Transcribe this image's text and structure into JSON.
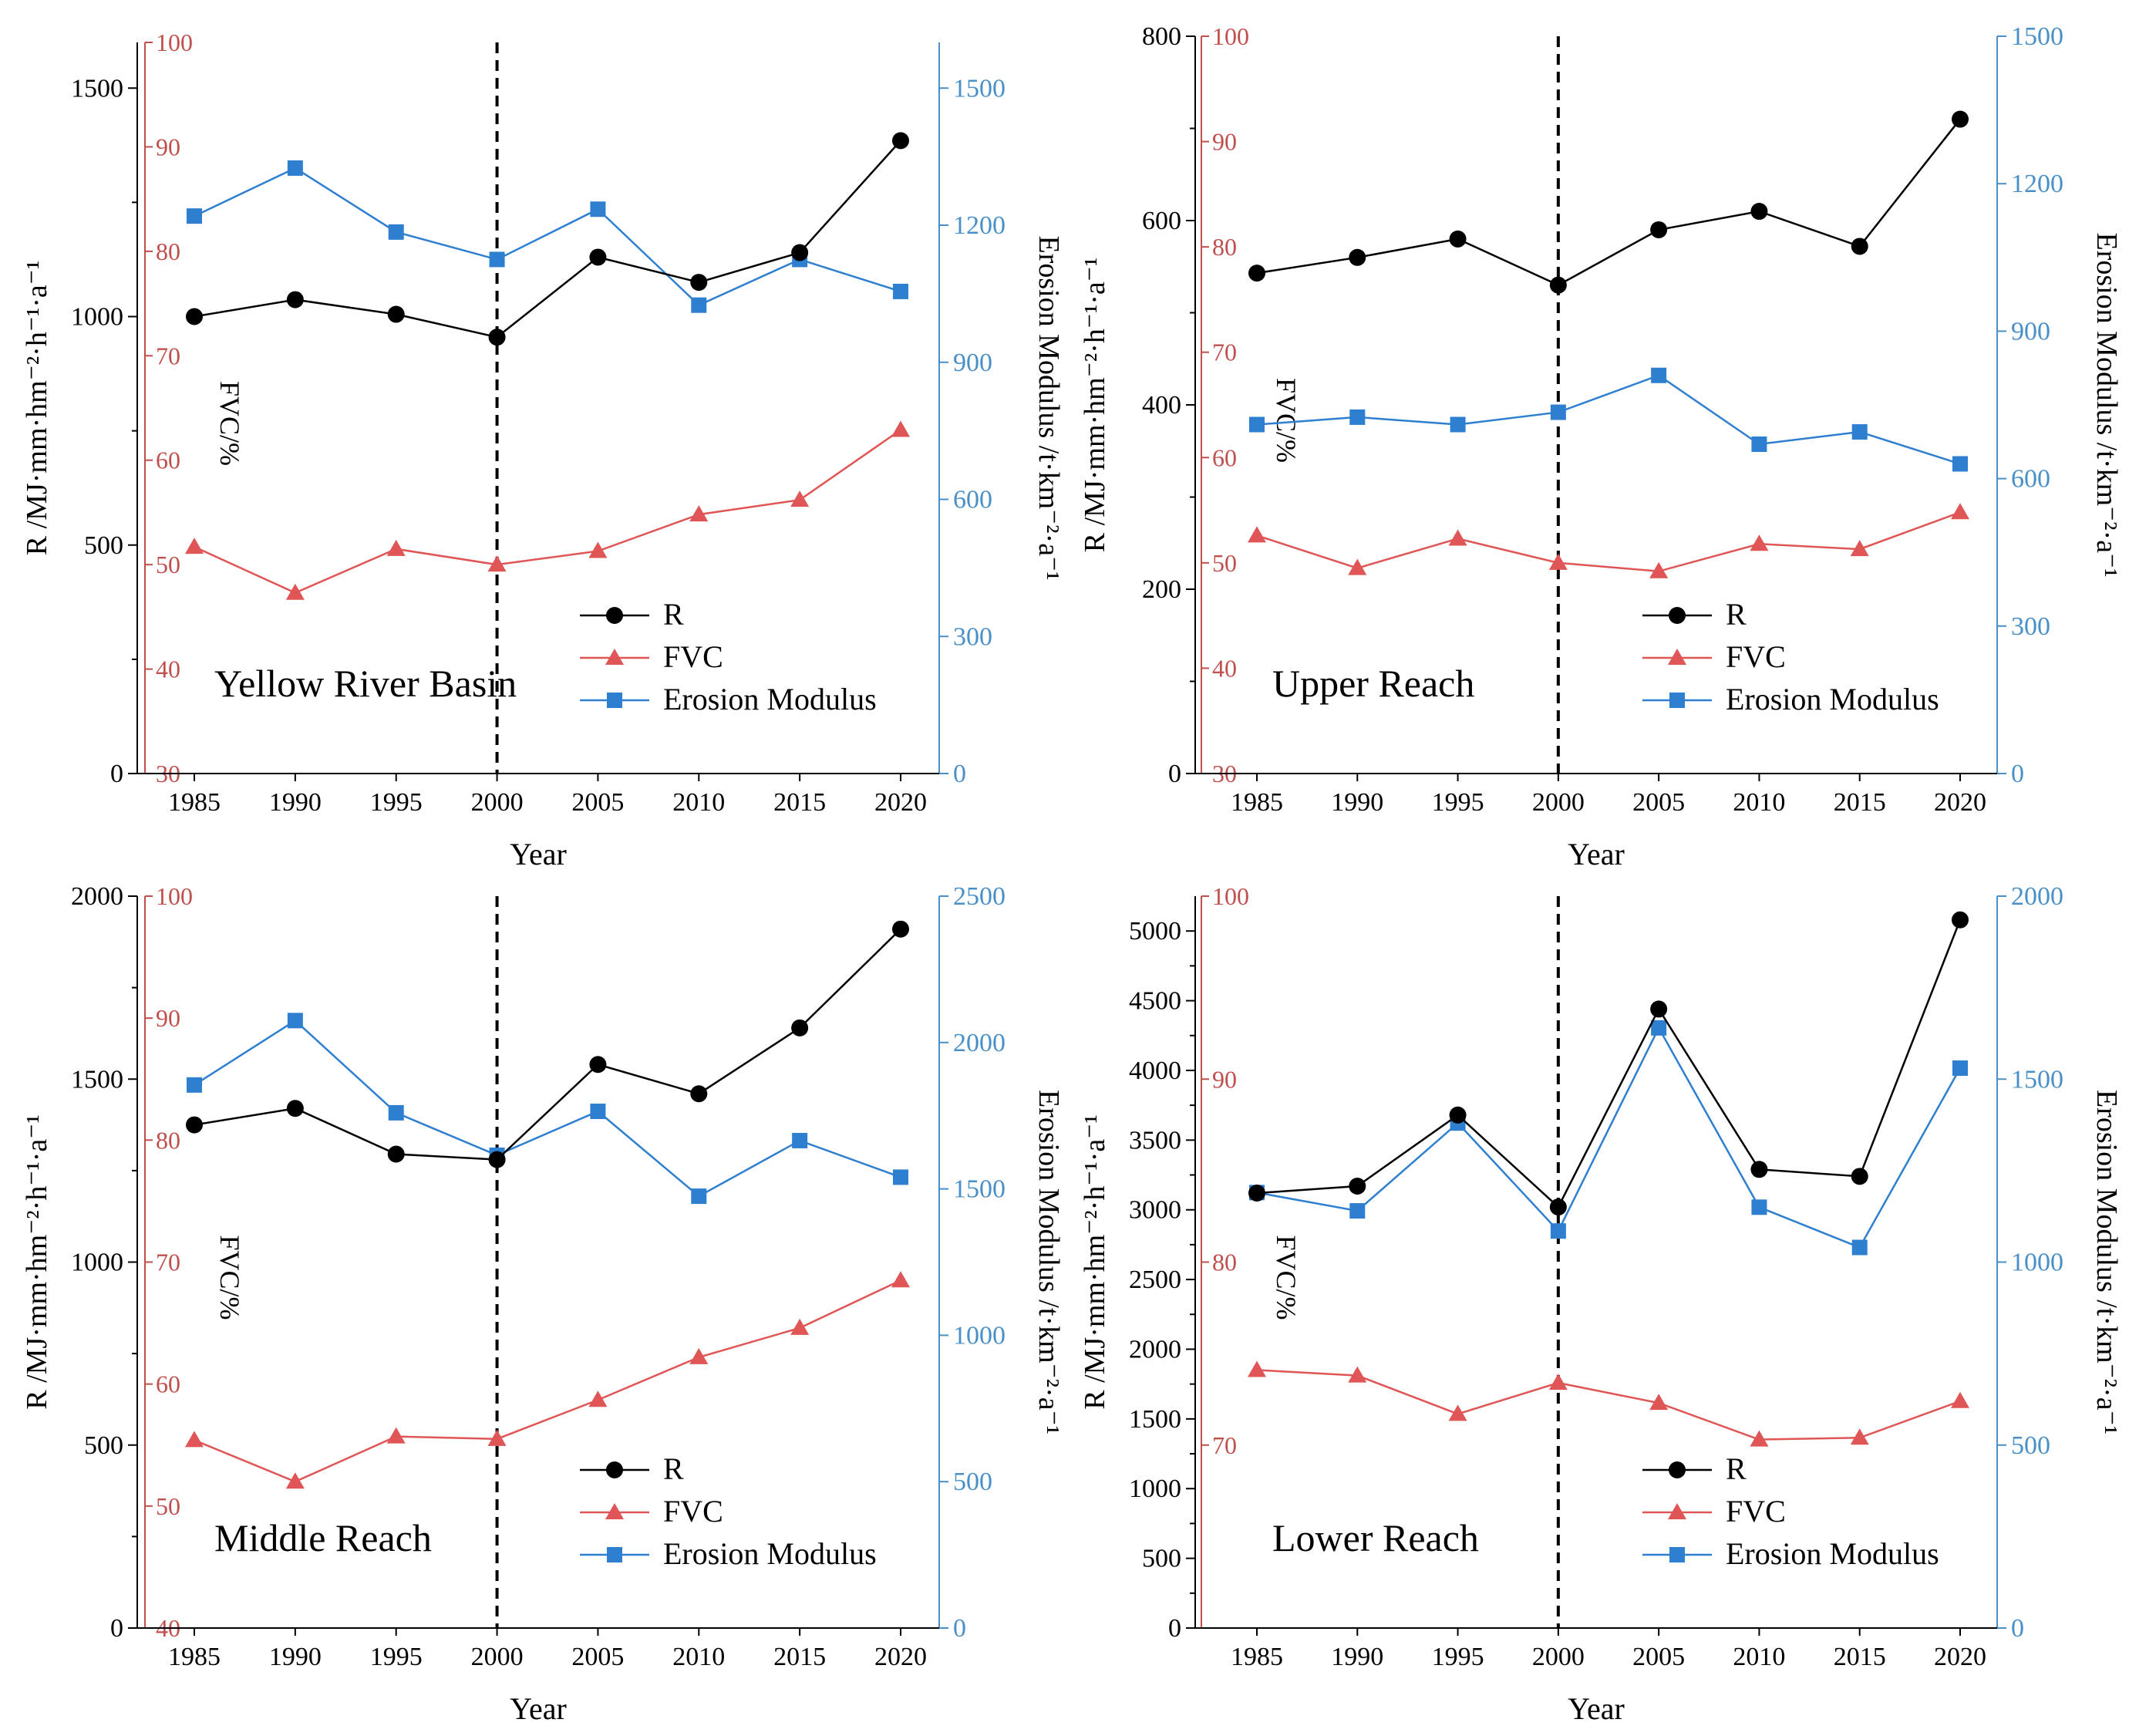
{
  "figure": {
    "xlabel": "Year",
    "legend_labels": [
      "R",
      "FVC",
      "Erosion Modulus"
    ]
  },
  "colors": {
    "R": "#000000",
    "FVC": "#e05555",
    "Erosion": "#2e7fd0",
    "R_axis": "#000000",
    "FVC_axis": "#c0504d",
    "Erosion_axis": "#4a90c8"
  },
  "chart_data": [
    {
      "type": "line",
      "title": "Yellow River Basin",
      "x": [
        1985,
        1990,
        1995,
        2000,
        2005,
        2010,
        2015,
        2020
      ],
      "divider_year": 2000,
      "xlabel": "Year",
      "axes": {
        "R": {
          "label": "R /MJ·mm·hm⁻²·h⁻¹·a⁻¹",
          "lim": [
            0,
            1600
          ],
          "ticks": [
            0,
            500,
            1000,
            1500
          ]
        },
        "FVC": {
          "label": "FVC/%",
          "lim": [
            30,
            100
          ],
          "ticks": [
            30,
            40,
            50,
            60,
            70,
            80,
            90,
            100
          ]
        },
        "Erosion": {
          "label": "Erosion Modulus /t·km⁻²·a⁻¹",
          "lim": [
            0,
            1600
          ],
          "ticks": [
            0,
            300,
            600,
            900,
            1200,
            1500
          ]
        }
      },
      "series": [
        {
          "name": "R",
          "axis": "R",
          "values": [
            1000,
            1037,
            1005,
            955,
            1130,
            1075,
            1140,
            1385
          ]
        },
        {
          "name": "FVC",
          "axis": "FVC",
          "values": [
            51.7,
            47.3,
            51.5,
            50.0,
            51.3,
            54.8,
            56.2,
            62.9
          ]
        },
        {
          "name": "Erosion Modulus",
          "axis": "Erosion",
          "values": [
            1220,
            1325,
            1185,
            1125,
            1235,
            1025,
            1125,
            1055
          ]
        }
      ]
    },
    {
      "type": "line",
      "title": "Upper Reach",
      "x": [
        1985,
        1990,
        1995,
        2000,
        2005,
        2010,
        2015,
        2020
      ],
      "divider_year": 2000,
      "xlabel": "Year",
      "axes": {
        "R": {
          "label": "R /MJ·mm·hm⁻²·h⁻¹·a⁻¹",
          "lim": [
            0,
            800
          ],
          "ticks": [
            0,
            200,
            400,
            600,
            800
          ]
        },
        "FVC": {
          "label": "FVC/%",
          "lim": [
            30,
            100
          ],
          "ticks": [
            30,
            40,
            50,
            60,
            70,
            80,
            90,
            100
          ]
        },
        "Erosion": {
          "label": "Erosion Modulus /t·km⁻²·a⁻¹",
          "lim": [
            0,
            1500
          ],
          "ticks": [
            0,
            300,
            600,
            900,
            1200,
            1500
          ]
        }
      },
      "series": [
        {
          "name": "R",
          "axis": "R",
          "values": [
            543,
            560,
            580,
            530,
            590,
            610,
            572,
            710
          ]
        },
        {
          "name": "FVC",
          "axis": "FVC",
          "values": [
            52.6,
            49.5,
            52.3,
            50.0,
            49.2,
            51.8,
            51.3,
            54.8
          ]
        },
        {
          "name": "Erosion Modulus",
          "axis": "Erosion",
          "values": [
            710,
            725,
            710,
            735,
            810,
            670,
            695,
            630
          ]
        }
      ]
    },
    {
      "type": "line",
      "title": "Middle Reach",
      "x": [
        1985,
        1990,
        1995,
        2000,
        2005,
        2010,
        2015,
        2020
      ],
      "divider_year": 2000,
      "xlabel": "Year",
      "axes": {
        "R": {
          "label": "R /MJ·mm·hm⁻²·h⁻¹·a⁻¹",
          "lim": [
            0,
            2000
          ],
          "ticks": [
            0,
            500,
            1000,
            1500,
            2000
          ]
        },
        "FVC": {
          "label": "FVC/%",
          "lim": [
            40,
            100
          ],
          "ticks": [
            40,
            50,
            60,
            70,
            80,
            90,
            100
          ]
        },
        "Erosion": {
          "label": "Erosion Modulus /t·km⁻²·a⁻¹",
          "lim": [
            0,
            2500
          ],
          "ticks": [
            0,
            500,
            1000,
            1500,
            2000,
            2500
          ]
        }
      },
      "series": [
        {
          "name": "R",
          "axis": "R",
          "values": [
            1375,
            1420,
            1295,
            1280,
            1540,
            1460,
            1640,
            1910
          ]
        },
        {
          "name": "FVC",
          "axis": "FVC",
          "values": [
            55.4,
            52.0,
            55.7,
            55.5,
            58.7,
            62.2,
            64.6,
            68.5
          ]
        },
        {
          "name": "Erosion Modulus",
          "axis": "Erosion",
          "values": [
            1855,
            2075,
            1760,
            1615,
            1765,
            1475,
            1665,
            1540
          ]
        }
      ]
    },
    {
      "type": "line",
      "title": "Lower Reach",
      "x": [
        1985,
        1990,
        1995,
        2000,
        2005,
        2010,
        2015,
        2020
      ],
      "divider_year": 2000,
      "xlabel": "Year",
      "axes": {
        "R": {
          "label": "R /MJ·mm·hm⁻²·h⁻¹·a⁻¹",
          "lim": [
            0,
            5250
          ],
          "ticks": [
            0,
            500,
            1000,
            1500,
            2000,
            2500,
            3000,
            3500,
            4000,
            4500,
            5000
          ]
        },
        "FVC": {
          "label": "FVC/%",
          "lim": [
            60,
            100
          ],
          "ticks": [
            70,
            80,
            90,
            100
          ]
        },
        "Erosion": {
          "label": "Erosion Modulus /t·km⁻²·a⁻¹",
          "lim": [
            0,
            2000
          ],
          "ticks": [
            0,
            500,
            1000,
            1500,
            2000
          ]
        }
      },
      "series": [
        {
          "name": "R",
          "axis": "R",
          "values": [
            3120,
            3170,
            3680,
            3020,
            4440,
            3290,
            3240,
            5080
          ]
        },
        {
          "name": "FVC",
          "axis": "FVC",
          "values": [
            74.1,
            73.8,
            71.7,
            73.4,
            72.3,
            70.3,
            70.4,
            72.4
          ]
        },
        {
          "name": "Erosion Modulus",
          "axis": "Erosion",
          "values": [
            1190,
            1140,
            1380,
            1085,
            1640,
            1150,
            1040,
            1530
          ]
        }
      ]
    }
  ]
}
